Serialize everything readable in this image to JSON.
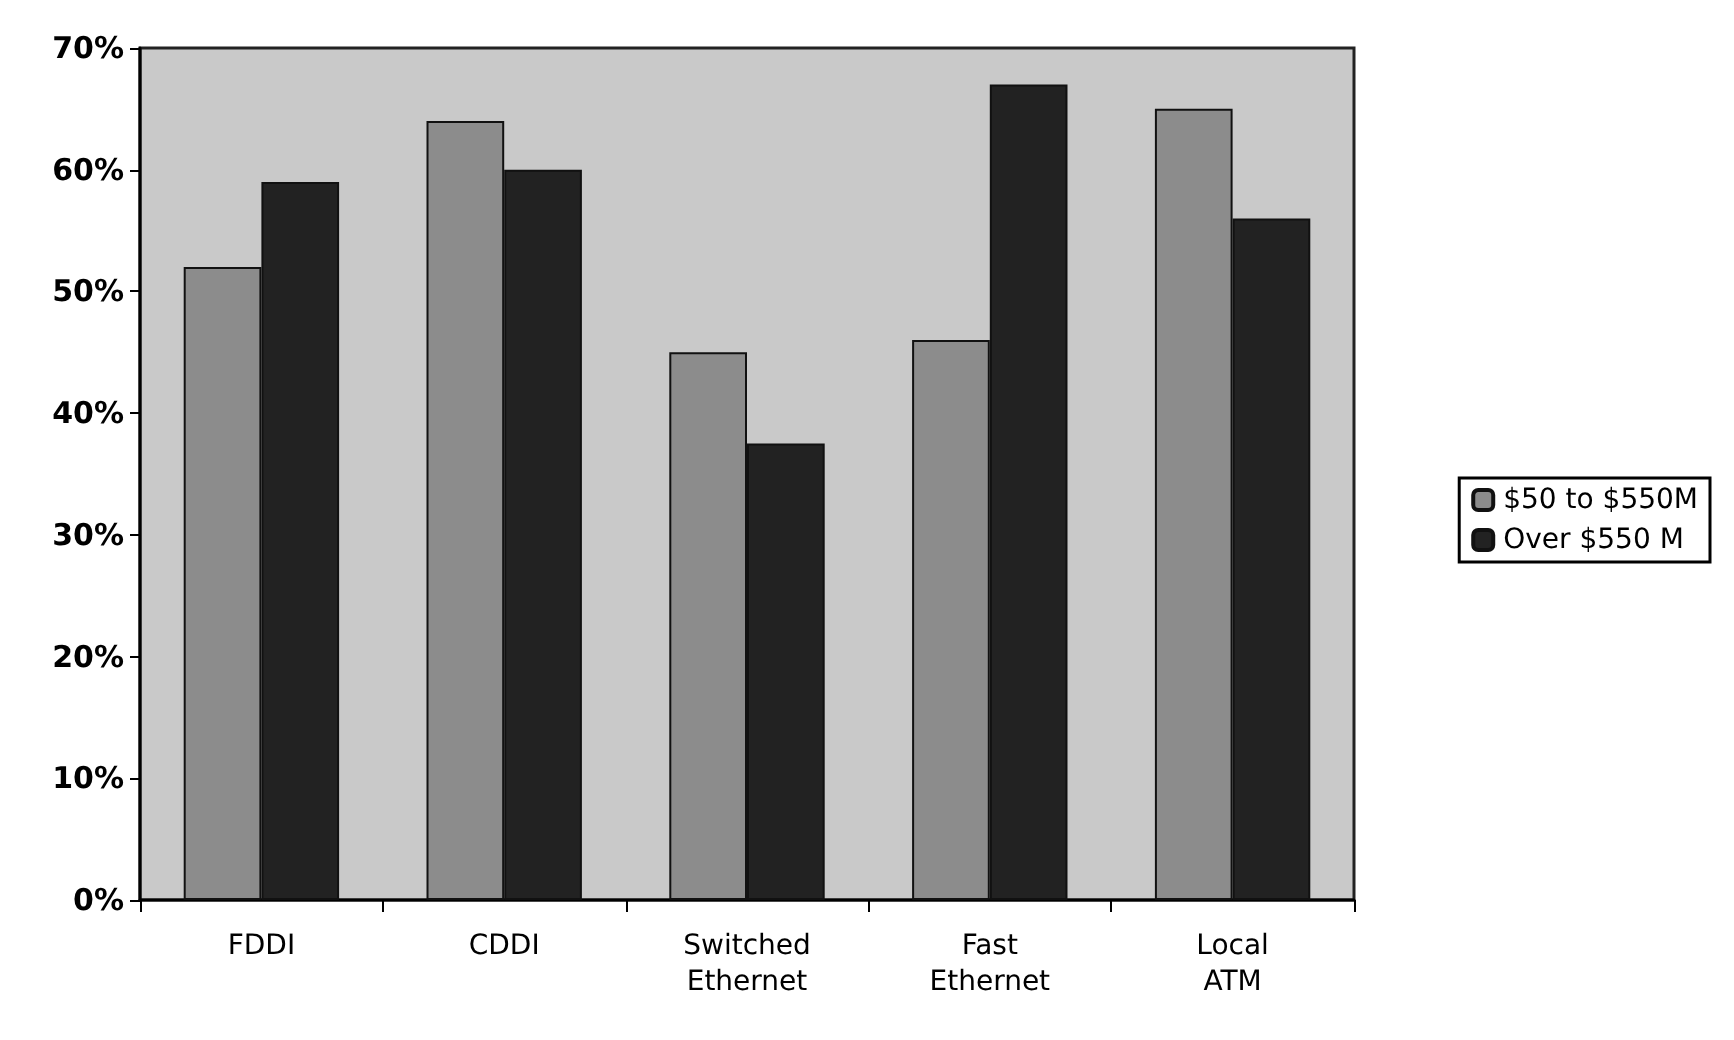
{
  "chart_data": {
    "type": "bar",
    "categories": [
      "FDDI",
      "CDDI",
      "Switched\nEthernet",
      "Fast\nEthernet",
      "Local\nATM"
    ],
    "series": [
      {
        "name": "$50 to $550M",
        "color": "#8c8c8c",
        "values": [
          52,
          64,
          45,
          46,
          65
        ]
      },
      {
        "name": "Over $550 M",
        "color": "#222222",
        "values": [
          59,
          60,
          37.5,
          67,
          56
        ]
      }
    ],
    "ylim": [
      0,
      70
    ],
    "yticks": [
      {
        "value": 0,
        "label": "0%"
      },
      {
        "value": 10,
        "label": "10%"
      },
      {
        "value": 20,
        "label": "20%"
      },
      {
        "value": 30,
        "label": "30%"
      },
      {
        "value": 40,
        "label": "40%"
      },
      {
        "value": 50,
        "label": "50%"
      },
      {
        "value": 60,
        "label": "60%"
      },
      {
        "value": 70,
        "label": "70%"
      }
    ],
    "grid": false,
    "legend": "right"
  }
}
